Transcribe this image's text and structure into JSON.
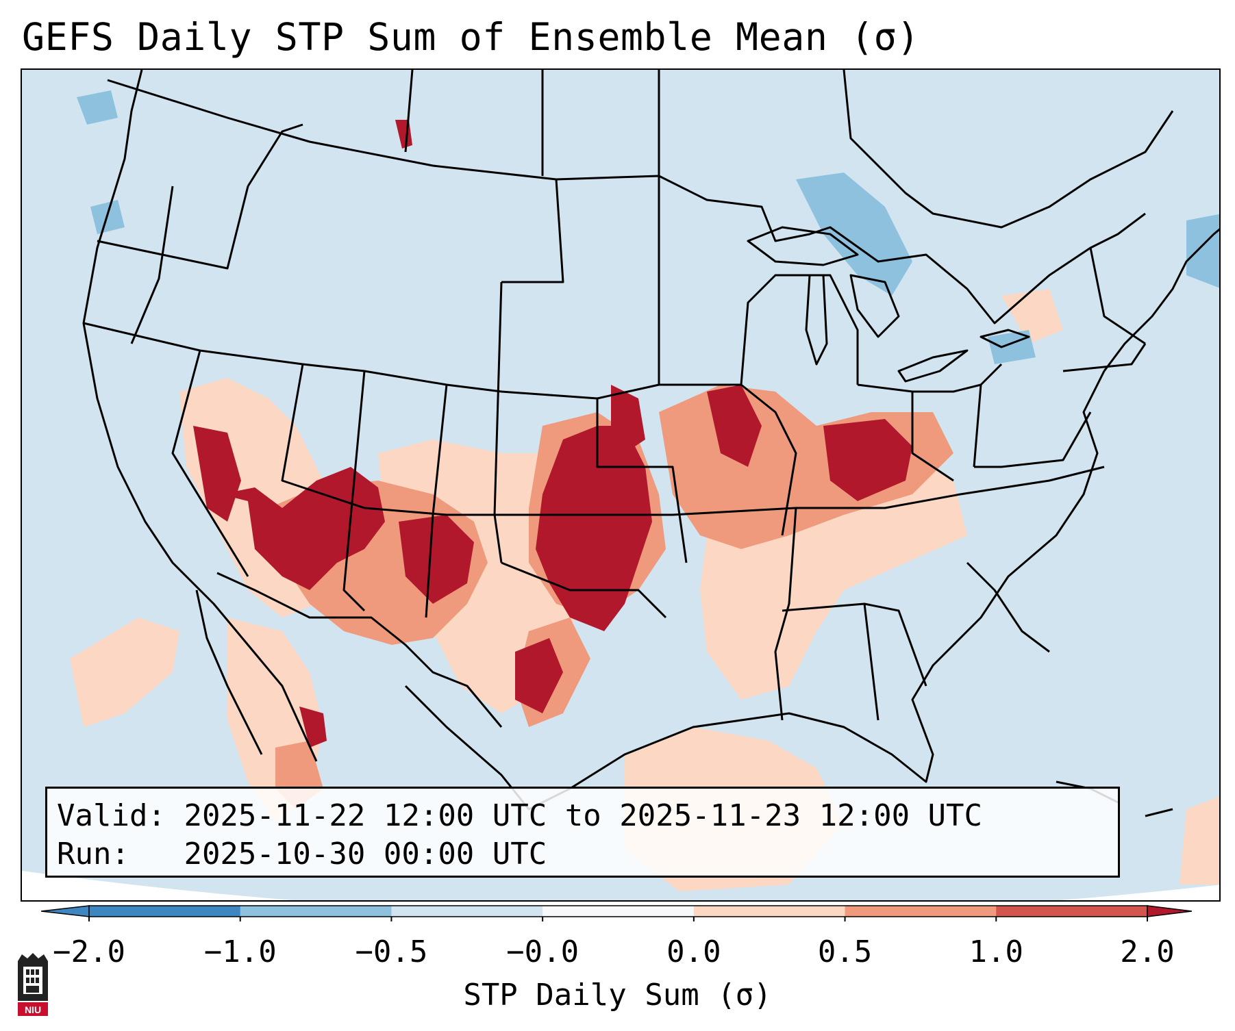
{
  "title": "GEFS Daily STP Sum of Ensemble Mean (σ)",
  "info": {
    "valid_label": "Valid:",
    "valid_value": "2025-11-22 12:00 UTC to 2025-11-23 12:00 UTC",
    "run_label": "Run:",
    "run_value": "2025-10-30 00:00 UTC"
  },
  "colorbar": {
    "label": "STP Daily Sum (σ)",
    "ticks": [
      "−2.0",
      "−1.0",
      "−0.5",
      "−0.0",
      "0.0",
      "0.5",
      "1.0",
      "2.0"
    ],
    "colors": [
      "#3d86c0",
      "#8dc1de",
      "#d1e4ef",
      "#f6f8fa",
      "#fbd7c4",
      "#ef9a7c",
      "#d3564e",
      "#b2182b"
    ],
    "extend": "both"
  },
  "logo": {
    "text": "NIU",
    "color": "#c8102e"
  },
  "map": {
    "background_color": "#d1e4ef",
    "outside_color": "#ffffff",
    "line_color": "#000000",
    "anomaly_regions": [
      {
        "name": "southern-plains-core",
        "level": 2
      },
      {
        "name": "four-corners-core",
        "level": 2
      },
      {
        "name": "ohio-valley-core",
        "level": 2
      },
      {
        "name": "mid-mississippi",
        "level": 1
      },
      {
        "name": "gulf-coast",
        "level": 0
      },
      {
        "name": "great-lakes-negative",
        "level": -1
      }
    ]
  }
}
